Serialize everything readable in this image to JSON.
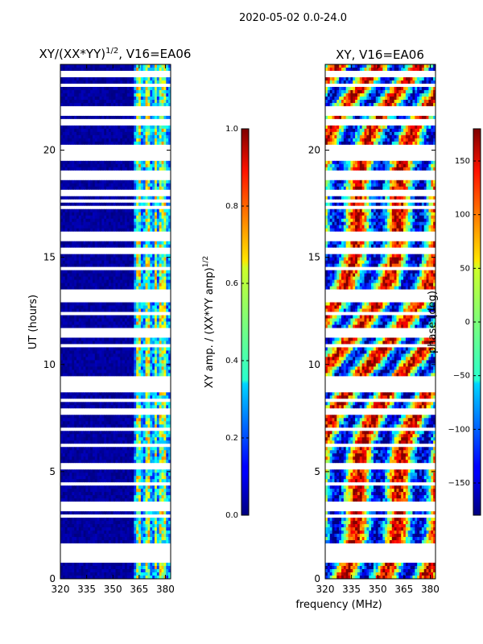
{
  "figure": {
    "suptitle": "2020-05-02 0.0-24.0",
    "shared_xlabel": "frequency (MHz)"
  },
  "chart_data": [
    {
      "type": "heatmap",
      "title": "XY/(XX*YY)",
      "title_superscript": "1/2",
      "title_suffix": ", V16=EA06",
      "xlabel": "",
      "ylabel": "UT (hours)",
      "xlim": [
        320,
        383
      ],
      "ylim": [
        0,
        24
      ],
      "xticks": [
        320,
        335,
        350,
        365,
        380
      ],
      "yticks": [
        0,
        5,
        10,
        15,
        20
      ],
      "colormap": "jet",
      "colorbar": {
        "label": "XY amp. / (XX*YY amp)",
        "label_superscript": "1/2",
        "range": [
          0.0,
          1.0
        ],
        "ticks": [
          "0.0",
          "0.2",
          "0.4",
          "0.6",
          "0.8",
          "1.0"
        ]
      },
      "flagged_ut_hours": [
        0.9,
        1.1,
        1.3,
        1.5,
        2.9,
        3.3,
        3.45,
        4.4,
        5.2,
        5.3,
        6.2,
        7.0,
        7.8,
        8.3,
        8.8,
        9.0,
        9.3,
        10.9,
        11.4,
        11.5,
        11.6,
        12.4,
        13.0,
        13.2,
        13.4,
        14.5,
        15.3,
        15.9,
        16.0,
        16.1,
        17.3,
        17.6,
        18.0,
        18.7,
        18.9,
        19.6,
        19.8,
        20.0,
        20.2,
        21.3,
        21.7,
        21.9,
        22.0,
        23.0,
        23.5,
        23.6
      ],
      "rfi_bands_mhz": [
        [
          363,
          366
        ],
        [
          368,
          371
        ],
        [
          374,
          375
        ],
        [
          377,
          381
        ]
      ]
    },
    {
      "type": "heatmap",
      "title": "XY, V16=EA06",
      "xlabel": "frequency (MHz)",
      "ylabel": "",
      "xlim": [
        320,
        383
      ],
      "ylim": [
        0,
        24
      ],
      "xticks": [
        320,
        335,
        350,
        365,
        380
      ],
      "yticks": [
        0,
        5,
        10,
        15,
        20
      ],
      "colormap": "jet",
      "colorbar": {
        "label": "phase (deg)",
        "range": [
          -180,
          180
        ],
        "ticks": [
          "150",
          "100",
          "50",
          "0",
          "−50",
          "−100",
          "−150"
        ]
      }
    }
  ],
  "colors": {
    "jet_dark_blue": "#00007f",
    "jet_red": "#7f0000",
    "flag_white": "#ffffff",
    "axis_black": "#000000"
  }
}
